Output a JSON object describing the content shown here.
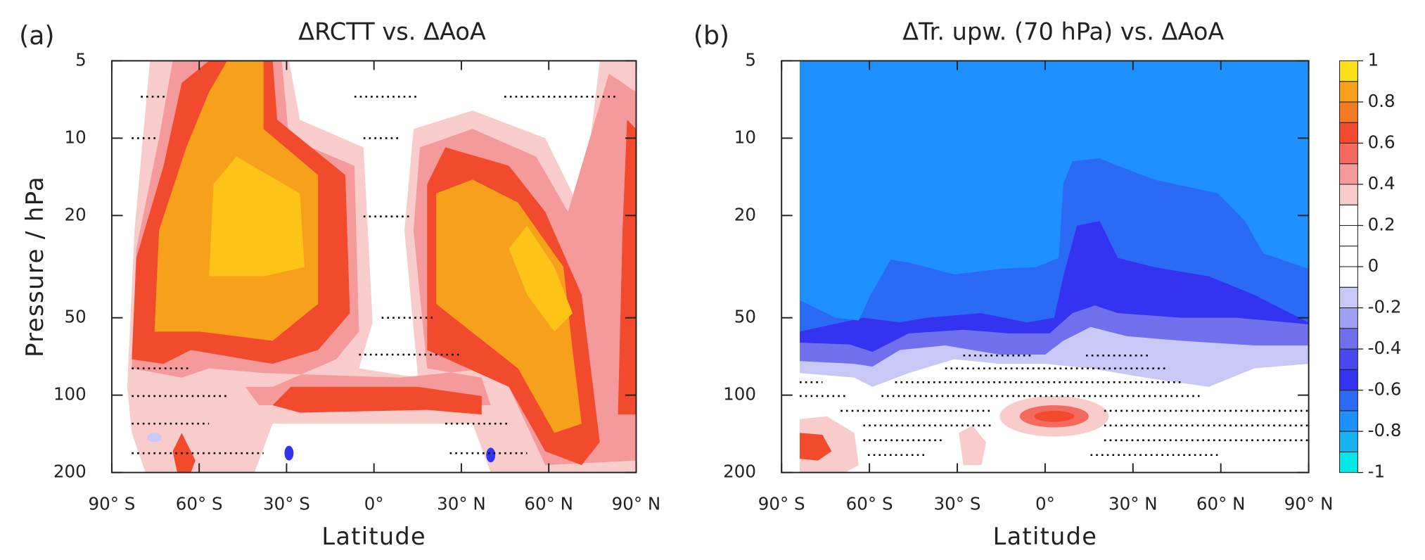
{
  "chart_data": [
    {
      "type": "contour",
      "panel_label": "(a)",
      "title": "ΔRCTT vs. ΔAoA",
      "xlabel": "Latitude",
      "ylabel": "Pressure / hPa",
      "xlim": [
        -90,
        90
      ],
      "xticks": [
        {
          "value": -90,
          "label": "90° S"
        },
        {
          "value": -60,
          "label": "60° S"
        },
        {
          "value": -30,
          "label": "30° S"
        },
        {
          "value": 0,
          "label": "0°"
        },
        {
          "value": 30,
          "label": "30° N"
        },
        {
          "value": 60,
          "label": "60° N"
        },
        {
          "value": 90,
          "label": "90° N"
        }
      ],
      "ylim": [
        200,
        5
      ],
      "yticks": [
        5,
        10,
        20,
        50,
        100,
        200
      ],
      "log_y": true
    },
    {
      "type": "contour",
      "panel_label": "(b)",
      "title": "ΔTr. upw. (70 hPa) vs. ΔAoA",
      "xlabel": "Latitude",
      "xlim": [
        -90,
        90
      ],
      "xticks": [
        {
          "value": -90,
          "label": "90° S"
        },
        {
          "value": -60,
          "label": "60° S"
        },
        {
          "value": -30,
          "label": "30° S"
        },
        {
          "value": 0,
          "label": "0°"
        },
        {
          "value": 30,
          "label": "30° N"
        },
        {
          "value": 60,
          "label": "60° N"
        },
        {
          "value": 90,
          "label": "90° N"
        }
      ],
      "ylim": [
        200,
        5
      ],
      "yticks": [
        5,
        10,
        20,
        50,
        100,
        200
      ],
      "log_y": true,
      "colorbar": {
        "lim": [
          -1,
          1
        ],
        "ticks": [
          1,
          0.8,
          0.6,
          0.4,
          0.2,
          0,
          -0.2,
          -0.4,
          -0.6,
          -0.8,
          -1
        ],
        "colors": [
          "#00e8e8",
          "#18b4f0",
          "#1e90ff",
          "#2a6af5",
          "#3434f0",
          "#4848ee",
          "#7070ec",
          "#a0a0f2",
          "#c8c8f6",
          "#ffffff",
          "#ffffff",
          "#ffffff",
          "#ffffff",
          "#f9cccc",
          "#f59a9a",
          "#f46a5e",
          "#f24a2c",
          "#f57a24",
          "#f7a01c",
          "#fde21a"
        ]
      }
    }
  ]
}
